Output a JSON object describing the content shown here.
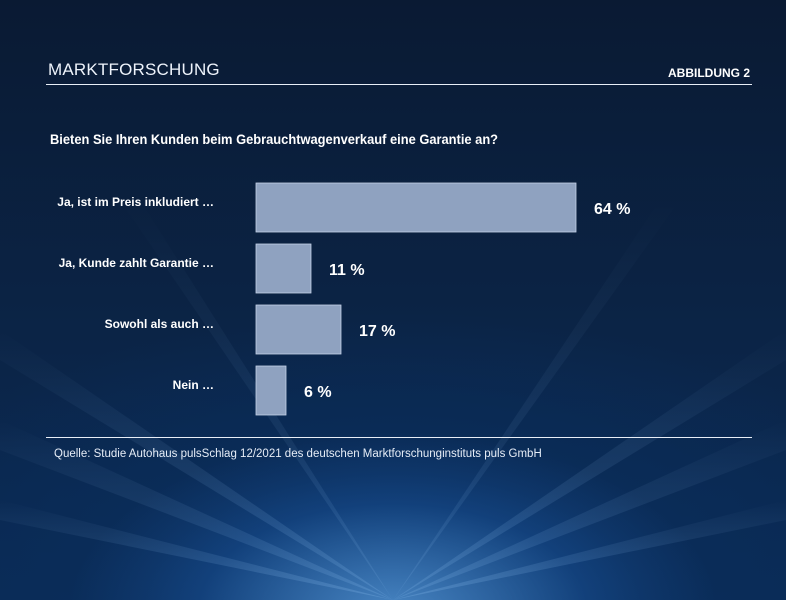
{
  "header": {
    "section": "MARKTFORSCHUNG",
    "figure": "ABBILDUNG 2"
  },
  "colors": {
    "bar": "#8fa2c0",
    "background": "#0b2446"
  },
  "chart_data": {
    "type": "bar",
    "orientation": "horizontal",
    "title": "Bieten Sie Ihren Kunden beim Gebrauchtwagenverkauf eine Garantie an?",
    "categories": [
      "Ja, ist im Preis inkludiert …",
      "Ja, Kunde zahlt Garantie …",
      "Sowohl als auch …",
      "Nein …"
    ],
    "values": [
      64,
      11,
      17,
      6
    ],
    "value_labels": [
      "64 %",
      "11 %",
      "17 %",
      "6 %"
    ],
    "unit": "%",
    "xlim": [
      0,
      100
    ],
    "grid": false
  },
  "source": "Quelle: Studie Autohaus pulsSchlag 12/2021 des deutschen Marktforschunginstituts puls GmbH"
}
